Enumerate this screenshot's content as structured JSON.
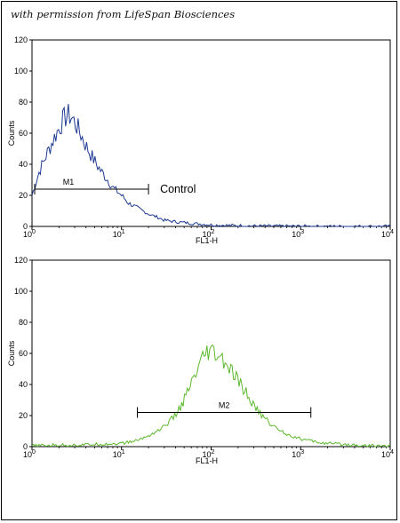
{
  "credit_text": "with permission from LifeSpan Biosciences",
  "colors": {
    "control": "#1f3a93",
    "sample": "#5cb82c",
    "axis": "#000000"
  },
  "chart_data": [
    {
      "type": "line",
      "scale": {
        "x": "log",
        "y": "linear"
      },
      "xlim": [
        1,
        10000
      ],
      "ylim": [
        0,
        120
      ],
      "xlabel": "FL1-H",
      "ylabel": "Counts",
      "x_tick_labels": [
        "10",
        "10",
        "10",
        "10",
        "10"
      ],
      "x_tick_exponents": [
        "0",
        "1",
        "2",
        "3",
        "4"
      ],
      "y_ticks": [
        "0",
        "20",
        "40",
        "60",
        "80",
        "100",
        "120"
      ],
      "series": [
        {
          "color": "#1f3a93",
          "x": [
            1,
            1.2,
            1.5,
            1.8,
            2.0,
            2.2,
            2.5,
            2.8,
            3.2,
            3.6,
            4.0,
            5.0,
            6.0,
            7.0,
            8.0,
            10,
            12,
            15,
            20,
            25,
            30,
            40,
            50,
            60,
            80,
            100,
            150,
            200,
            300,
            500,
            1000,
            2000,
            5000,
            10000
          ],
          "y": [
            20,
            35,
            48,
            58,
            63,
            68,
            72,
            70,
            64,
            58,
            52,
            42,
            35,
            30,
            25,
            20,
            15,
            12,
            8,
            6,
            4,
            3,
            2.5,
            2,
            1.5,
            1,
            0.7,
            0.5,
            0.3,
            0.2,
            0.1,
            0,
            0,
            0
          ]
        }
      ],
      "gates": [
        {
          "label": "M1",
          "range": [
            1,
            20
          ],
          "y": 24
        }
      ],
      "annotations": [
        {
          "text": "Control"
        }
      ]
    },
    {
      "type": "line",
      "scale": {
        "x": "log",
        "y": "linear"
      },
      "xlim": [
        1,
        10000
      ],
      "ylim": [
        0,
        120
      ],
      "xlabel": "FL1-H",
      "ylabel": "Counts",
      "x_tick_labels": [
        "10",
        "10",
        "10",
        "10",
        "10"
      ],
      "x_tick_exponents": [
        "0",
        "1",
        "2",
        "3",
        "4"
      ],
      "y_ticks": [
        "0",
        "20",
        "40",
        "60",
        "80",
        "100",
        "120"
      ],
      "series": [
        {
          "color": "#5cb82c",
          "x": [
            1,
            2,
            3,
            5,
            10,
            15,
            20,
            25,
            30,
            40,
            50,
            60,
            70,
            80,
            90,
            100,
            120,
            150,
            200,
            250,
            300,
            400,
            500,
            700,
            1000,
            1500,
            2000,
            3000,
            5000,
            10000
          ],
          "y": [
            0.5,
            1,
            1,
            1.5,
            2,
            4,
            7,
            10,
            13,
            20,
            30,
            40,
            48,
            55,
            60,
            60,
            58,
            52,
            42,
            34,
            26,
            18,
            13,
            8,
            5,
            3,
            2,
            1.5,
            0.8,
            0.3
          ]
        }
      ],
      "gates": [
        {
          "label": "M2",
          "range": [
            15,
            1300
          ],
          "y": 22
        }
      ],
      "annotations": []
    }
  ]
}
